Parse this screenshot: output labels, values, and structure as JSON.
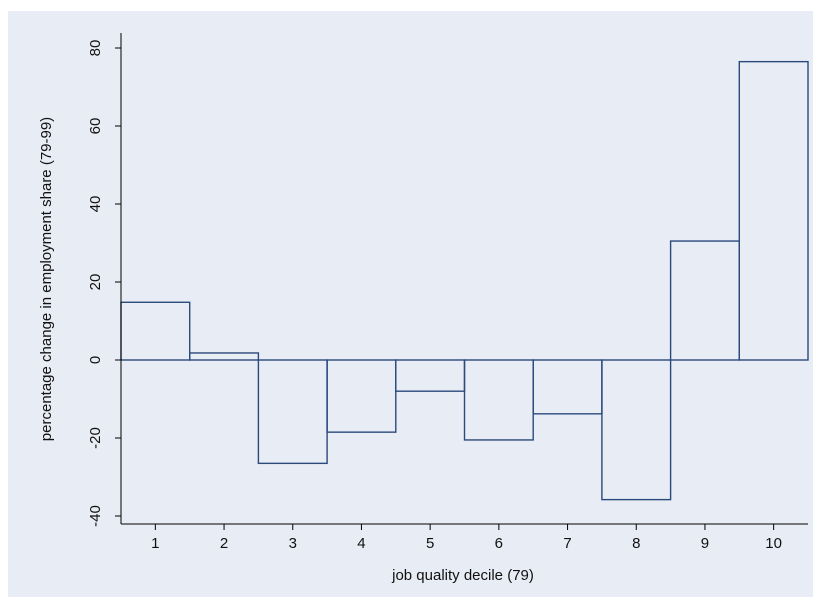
{
  "chart_data": {
    "type": "bar",
    "title": "",
    "xlabel": "job quality decile (79)",
    "ylabel": "percentage change in employment share (79-99)",
    "categories": [
      "1",
      "2",
      "3",
      "4",
      "5",
      "6",
      "7",
      "8",
      "9",
      "10"
    ],
    "x": [
      1,
      2,
      3,
      4,
      5,
      6,
      7,
      8,
      9,
      10
    ],
    "values": [
      14.8,
      1.8,
      -26.5,
      -18.5,
      -8.0,
      -20.5,
      -13.8,
      -35.8,
      30.5,
      76.5
    ],
    "xlim": [
      0.5,
      10.5
    ],
    "ylim": [
      -40,
      80
    ],
    "yticks": [
      -40,
      -20,
      0,
      20,
      40,
      60,
      80
    ],
    "ytick_labels": [
      "-40",
      "-20",
      "0",
      "20",
      "40",
      "60",
      "80"
    ],
    "grid": false,
    "legend": "none",
    "colors": {
      "outer_background": "#e8ecf5",
      "plot_background": "#e8ecf5",
      "bar_fill": "none",
      "bar_stroke": "#2b4a7c",
      "axis": "#000000",
      "text": "#111111"
    }
  }
}
